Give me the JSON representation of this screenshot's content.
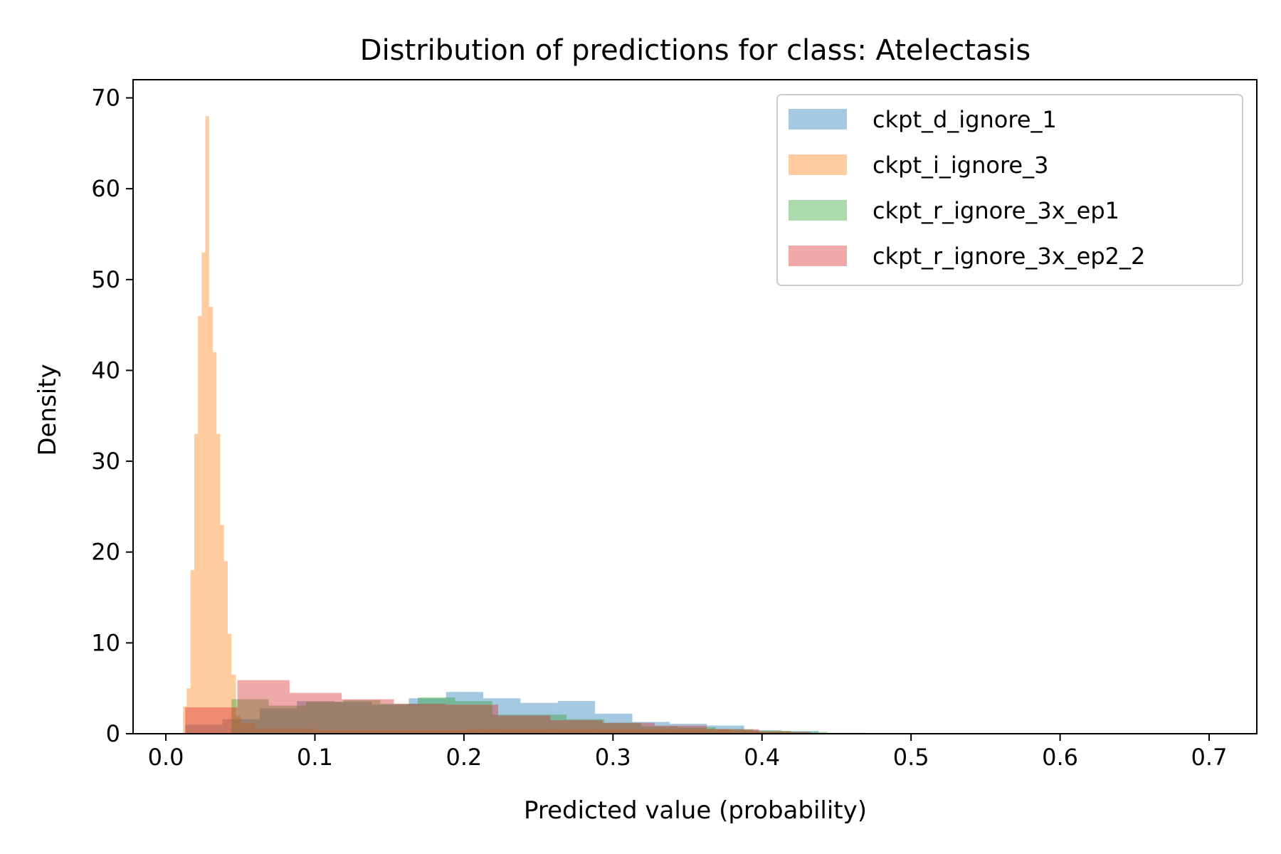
{
  "chart_data": {
    "type": "histogram",
    "title": "Distribution of predictions for class: Atelectasis",
    "xlabel": "Predicted value (probability)",
    "ylabel": "Density",
    "xlim": [
      -0.022,
      0.732
    ],
    "ylim": [
      0,
      72
    ],
    "xticks": [
      0.0,
      0.1,
      0.2,
      0.3,
      0.4,
      0.5,
      0.6,
      0.7
    ],
    "xtick_labels": [
      "0.0",
      "0.1",
      "0.2",
      "0.3",
      "0.4",
      "0.5",
      "0.6",
      "0.7"
    ],
    "yticks": [
      0,
      10,
      20,
      30,
      40,
      50,
      60,
      70
    ],
    "ytick_labels": [
      "0",
      "10",
      "20",
      "30",
      "40",
      "50",
      "60",
      "70"
    ],
    "grid": false,
    "legend_position": "top-right",
    "series": [
      {
        "name": "ckpt_d_ignore_1",
        "color": "#1f77b4",
        "opacity": 0.4,
        "bins": [
          [
            0.013,
            0.038,
            1.0
          ],
          [
            0.038,
            0.063,
            1.6
          ],
          [
            0.063,
            0.088,
            2.8
          ],
          [
            0.088,
            0.113,
            3.6
          ],
          [
            0.113,
            0.138,
            3.5
          ],
          [
            0.138,
            0.163,
            3.2
          ],
          [
            0.163,
            0.188,
            3.9
          ],
          [
            0.188,
            0.213,
            4.6
          ],
          [
            0.213,
            0.238,
            3.9
          ],
          [
            0.238,
            0.263,
            3.4
          ],
          [
            0.263,
            0.288,
            3.6
          ],
          [
            0.288,
            0.313,
            2.2
          ],
          [
            0.313,
            0.338,
            1.3
          ],
          [
            0.338,
            0.363,
            1.1
          ],
          [
            0.363,
            0.388,
            0.9
          ],
          [
            0.388,
            0.413,
            0.4
          ],
          [
            0.413,
            0.438,
            0.3
          ]
        ]
      },
      {
        "name": "ckpt_i_ignore_3",
        "color": "#ff7f0e",
        "opacity": 0.4,
        "bins": [
          [
            0.0115,
            0.014,
            3.0
          ],
          [
            0.014,
            0.0165,
            5.0
          ],
          [
            0.0165,
            0.019,
            18.0
          ],
          [
            0.019,
            0.0215,
            33.0
          ],
          [
            0.0215,
            0.024,
            46.0
          ],
          [
            0.024,
            0.0265,
            53.0
          ],
          [
            0.0265,
            0.029,
            68.0
          ],
          [
            0.029,
            0.0315,
            47.0
          ],
          [
            0.0315,
            0.034,
            42.0
          ],
          [
            0.034,
            0.0365,
            33.0
          ],
          [
            0.0365,
            0.039,
            23.0
          ],
          [
            0.039,
            0.0415,
            19.0
          ],
          [
            0.0415,
            0.044,
            11.0
          ],
          [
            0.044,
            0.047,
            6.5
          ],
          [
            0.047,
            0.05,
            2.0
          ],
          [
            0.05,
            0.06,
            1.2
          ],
          [
            0.06,
            0.1,
            0.6
          ],
          [
            0.1,
            0.2,
            0.4
          ],
          [
            0.2,
            0.3,
            0.5
          ],
          [
            0.3,
            0.38,
            0.5
          ],
          [
            0.38,
            0.42,
            0.3
          ]
        ]
      },
      {
        "name": "ckpt_r_ignore_3x_ep1",
        "color": "#2ca02c",
        "opacity": 0.4,
        "bins": [
          [
            0.044,
            0.069,
            3.8
          ],
          [
            0.069,
            0.094,
            3.1
          ],
          [
            0.094,
            0.119,
            3.5
          ],
          [
            0.119,
            0.144,
            3.7
          ],
          [
            0.144,
            0.169,
            3.3
          ],
          [
            0.169,
            0.194,
            4.0
          ],
          [
            0.194,
            0.219,
            3.6
          ],
          [
            0.219,
            0.244,
            2.1
          ],
          [
            0.244,
            0.269,
            2.1
          ],
          [
            0.269,
            0.294,
            1.6
          ],
          [
            0.294,
            0.319,
            1.2
          ],
          [
            0.319,
            0.344,
            0.8
          ],
          [
            0.344,
            0.369,
            0.7
          ],
          [
            0.369,
            0.394,
            0.5
          ],
          [
            0.394,
            0.419,
            0.3
          ],
          [
            0.419,
            0.444,
            0.2
          ],
          [
            0.444,
            0.469,
            0.1
          ]
        ]
      },
      {
        "name": "ckpt_r_ignore_3x_ep2_2",
        "color": "#d62728",
        "opacity": 0.4,
        "bins": [
          [
            0.013,
            0.048,
            2.9
          ],
          [
            0.048,
            0.083,
            5.9
          ],
          [
            0.083,
            0.118,
            4.5
          ],
          [
            0.118,
            0.153,
            3.8
          ],
          [
            0.153,
            0.188,
            3.3
          ],
          [
            0.188,
            0.223,
            3.2
          ],
          [
            0.223,
            0.258,
            2.0
          ],
          [
            0.258,
            0.293,
            1.5
          ],
          [
            0.293,
            0.328,
            1.2
          ],
          [
            0.328,
            0.363,
            0.9
          ],
          [
            0.363,
            0.398,
            0.5
          ],
          [
            0.398,
            0.433,
            0.2
          ]
        ]
      }
    ]
  }
}
